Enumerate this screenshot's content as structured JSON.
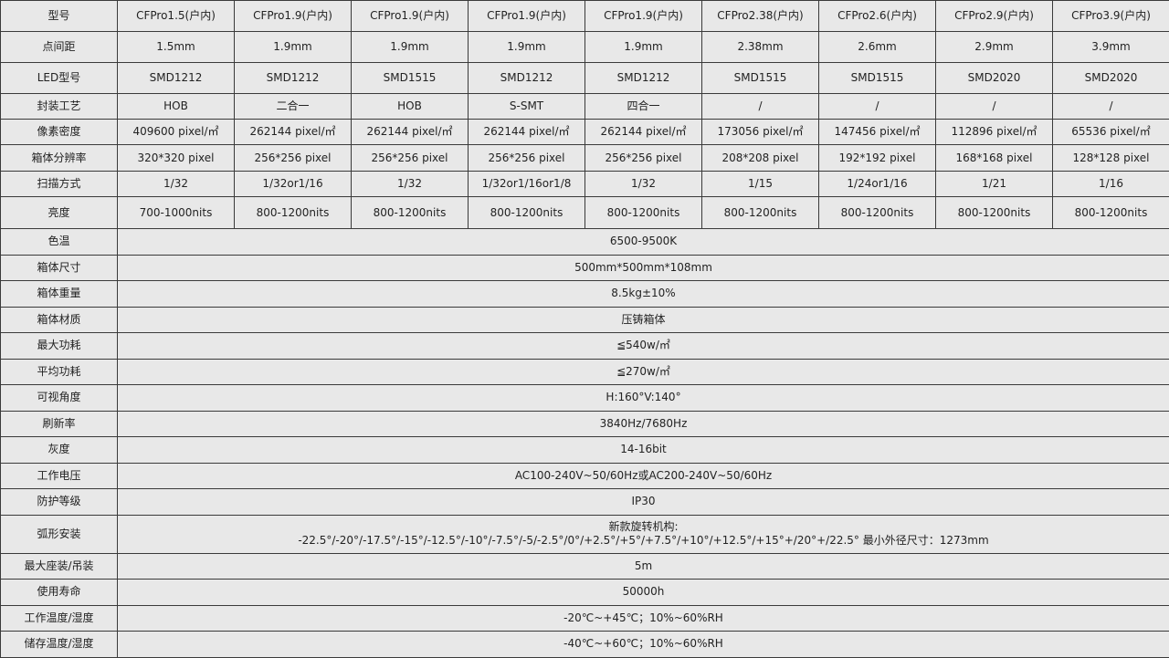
{
  "header": {
    "label": "型号",
    "models": [
      "CFPro1.5(户内)",
      "CFPro1.9(户内)",
      "CFPro1.9(户内)",
      "CFPro1.9(户内)",
      "CFPro1.9(户内)",
      "CFPro2.38(户内)",
      "CFPro2.6(户内)",
      "CFPro2.9(户内)",
      "CFPro3.9(户内)"
    ]
  },
  "per_model_rows": [
    {
      "label": "点间距",
      "values": [
        "1.5mm",
        "1.9mm",
        "1.9mm",
        "1.9mm",
        "1.9mm",
        "2.38mm",
        "2.6mm",
        "2.9mm",
        "3.9mm"
      ]
    },
    {
      "label": "LED型号",
      "values": [
        "SMD1212",
        "SMD1212",
        "SMD1515",
        "SMD1212",
        "SMD1212",
        "SMD1515",
        "SMD1515",
        "SMD2020",
        "SMD2020"
      ]
    },
    {
      "label": "封装工艺",
      "values": [
        "HOB",
        "二合一",
        "HOB",
        "S-SMT",
        "四合一",
        "/",
        "/",
        "/",
        "/"
      ]
    },
    {
      "label": "像素密度",
      "values": [
        "409600 pixel/㎡",
        "262144 pixel/㎡",
        "262144 pixel/㎡",
        "262144 pixel/㎡",
        "262144 pixel/㎡",
        "173056 pixel/㎡",
        "147456 pixel/㎡",
        "112896 pixel/㎡",
        "65536 pixel/㎡"
      ]
    },
    {
      "label": "箱体分辨率",
      "values": [
        "320*320 pixel",
        "256*256 pixel",
        "256*256 pixel",
        "256*256 pixel",
        "256*256 pixel",
        "208*208 pixel",
        "192*192 pixel",
        "168*168 pixel",
        "128*128 pixel"
      ]
    },
    {
      "label": "扫描方式",
      "values": [
        "1/32",
        "1/32or1/16",
        "1/32",
        "1/32or1/16or1/8",
        "1/32",
        "1/15",
        "1/24or1/16",
        "1/21",
        "1/16"
      ]
    },
    {
      "label": "亮度",
      "values": [
        "700-1000nits",
        "800-1200nits",
        "800-1200nits",
        "800-1200nits",
        "800-1200nits",
        "800-1200nits",
        "800-1200nits",
        "800-1200nits",
        "800-1200nits"
      ]
    }
  ],
  "shared_rows": [
    {
      "label": "色温",
      "value": "6500-9500K"
    },
    {
      "label": "箱体尺寸",
      "value": "500mm*500mm*108mm"
    },
    {
      "label": "箱体重量",
      "value": "8.5kg±10%"
    },
    {
      "label": "箱体材质",
      "value": "压铸箱体"
    },
    {
      "label": "最大功耗",
      "value": "≦540w/㎡"
    },
    {
      "label": "平均功耗",
      "value": "≦270w/㎡"
    },
    {
      "label": "可视角度",
      "value": "H:160°V:140°"
    },
    {
      "label": "刷新率",
      "value": "3840Hz/7680Hz"
    },
    {
      "label": "灰度",
      "value": "14-16bit"
    },
    {
      "label": "工作电压",
      "value": "AC100-240V~50/60Hz或AC200-240V~50/60Hz"
    },
    {
      "label": "防护等级",
      "value": "IP30"
    },
    {
      "label": "弧形安装",
      "value": "新款旋转机构:",
      "value2": "-22.5°/-20°/-17.5°/-15°/-12.5°/-10°/-7.5°/-5/-2.5°/0°/+2.5°/+5°/+7.5°/+10°/+12.5°/+15°+/20°+/22.5°   最小外径尺寸：1273mm"
    },
    {
      "label": "最大座装/吊装",
      "value": "5m"
    },
    {
      "label": "使用寿命",
      "value": "50000h"
    },
    {
      "label": "工作温度/湿度",
      "value": "-20℃~+45℃；10%~60%RH"
    },
    {
      "label": "储存温度/湿度",
      "value": "-40℃~+60℃；10%~60%RH"
    }
  ]
}
